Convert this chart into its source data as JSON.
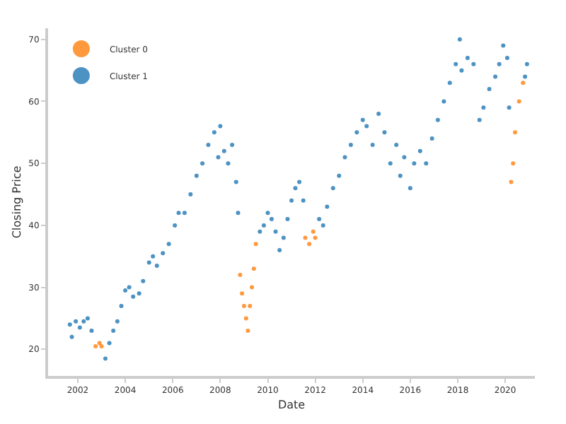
{
  "chart_data": {
    "type": "scatter",
    "xlabel": "Date",
    "ylabel": "Closing Price",
    "xlim": [
      "2000-10",
      "2021-04"
    ],
    "xticks": [
      "2002",
      "2004",
      "2006",
      "2008",
      "2010",
      "2012",
      "2014",
      "2016",
      "2018",
      "2020"
    ],
    "ylim": [
      15.7,
      71.8
    ],
    "yticks": [
      20,
      30,
      40,
      50,
      60,
      70
    ],
    "grid": false,
    "legend": "top left",
    "marker": "circle",
    "series": [
      {
        "name": "Cluster 0",
        "color": "#ff7f0e",
        "x": [
          "2002-10",
          "2002-12",
          "2003-01",
          "2008-11",
          "2008-12",
          "2009-01",
          "2009-02",
          "2009-03",
          "2009-04",
          "2009-05",
          "2009-06",
          "2009-07",
          "2011-08",
          "2011-10",
          "2011-12",
          "2012-01",
          "2020-04",
          "2020-05",
          "2020-06",
          "2020-08",
          "2020-10"
        ],
        "values": [
          20.5,
          21,
          20.5,
          32,
          29,
          27,
          25,
          23,
          27,
          30,
          33,
          37,
          38,
          37,
          39,
          38,
          47,
          50,
          55,
          60,
          63
        ]
      },
      {
        "name": "Cluster 1",
        "color": "#1f77b4",
        "x": [
          "2001-09",
          "2001-10",
          "2001-12",
          "2002-02",
          "2002-04",
          "2002-06",
          "2002-08",
          "2003-03",
          "2003-05",
          "2003-07",
          "2003-09",
          "2003-11",
          "2004-01",
          "2004-03",
          "2004-05",
          "2004-08",
          "2004-10",
          "2005-01",
          "2005-03",
          "2005-05",
          "2005-08",
          "2005-11",
          "2006-02",
          "2006-04",
          "2006-07",
          "2006-10",
          "2007-01",
          "2007-04",
          "2007-07",
          "2007-10",
          "2007-12",
          "2008-01",
          "2008-03",
          "2008-05",
          "2008-07",
          "2008-09",
          "2008-10",
          "2009-09",
          "2009-11",
          "2010-01",
          "2010-03",
          "2010-05",
          "2010-07",
          "2010-09",
          "2010-11",
          "2011-01",
          "2011-03",
          "2011-05",
          "2011-07",
          "2012-03",
          "2012-05",
          "2012-07",
          "2012-10",
          "2013-01",
          "2013-04",
          "2013-07",
          "2013-10",
          "2014-01",
          "2014-03",
          "2014-06",
          "2014-09",
          "2014-12",
          "2015-03",
          "2015-06",
          "2015-08",
          "2015-10",
          "2016-01",
          "2016-03",
          "2016-06",
          "2016-09",
          "2016-12",
          "2017-03",
          "2017-06",
          "2017-09",
          "2017-12",
          "2018-02",
          "2018-03",
          "2018-06",
          "2018-09",
          "2018-12",
          "2019-02",
          "2019-05",
          "2019-08",
          "2019-10",
          "2019-12",
          "2020-02",
          "2020-03",
          "2020-11",
          "2020-12"
        ],
        "values": [
          24,
          22,
          24.5,
          23.5,
          24.5,
          25,
          23,
          18.5,
          21,
          23,
          24.5,
          27,
          29.5,
          30,
          28.5,
          29,
          31,
          34,
          35,
          33.5,
          35.5,
          37,
          40,
          42,
          42,
          45,
          48,
          50,
          53,
          55,
          51,
          56,
          52,
          50,
          53,
          47,
          42,
          39,
          40,
          42,
          41,
          39,
          36,
          38,
          41,
          44,
          46,
          47,
          44,
          41,
          40,
          43,
          46,
          48,
          51,
          53,
          55,
          57,
          56,
          53,
          58,
          55,
          50,
          53,
          48,
          51,
          46,
          50,
          52,
          50,
          54,
          57,
          60,
          63,
          66,
          70,
          65,
          67,
          66,
          57,
          59,
          62,
          64,
          66,
          69,
          67,
          59,
          64,
          66
        ]
      }
    ]
  }
}
